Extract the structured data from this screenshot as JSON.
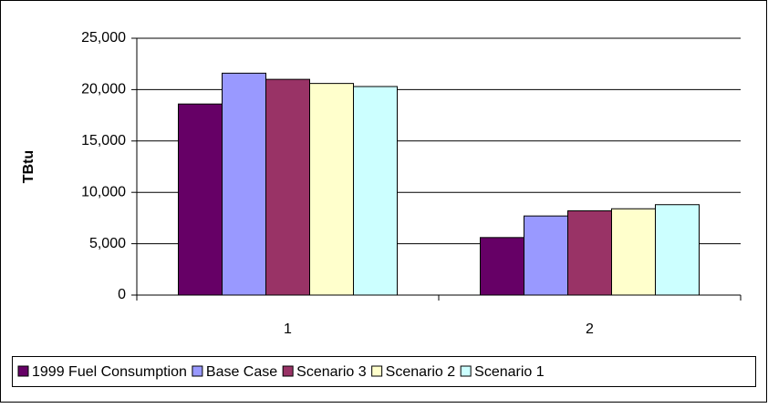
{
  "chart_data": {
    "type": "bar",
    "y_label": "TBtu",
    "categories": [
      "1",
      "2"
    ],
    "series": [
      {
        "name": "1999 Fuel Consumption",
        "color": "#660066",
        "values": [
          18600,
          5600
        ]
      },
      {
        "name": "Base Case",
        "color": "#9999ff",
        "values": [
          21600,
          7700
        ]
      },
      {
        "name": "Scenario 3",
        "color": "#993366",
        "values": [
          21000,
          8200
        ]
      },
      {
        "name": "Scenario 2",
        "color": "#ffffcc",
        "values": [
          20600,
          8400
        ]
      },
      {
        "name": "Scenario 1",
        "color": "#ccffff",
        "values": [
          20300,
          8800
        ]
      }
    ],
    "ylim": [
      0,
      25000
    ],
    "yticks": [
      0,
      {
        "value": 5000,
        "label": "5,000"
      },
      {
        "value": 10000,
        "label": "10,000"
      },
      {
        "value": 15000,
        "label": "15,000"
      },
      {
        "value": 20000,
        "label": "20,000"
      },
      {
        "value": 25000,
        "label": "25,000"
      }
    ],
    "grid": true,
    "legend": "bottom"
  }
}
